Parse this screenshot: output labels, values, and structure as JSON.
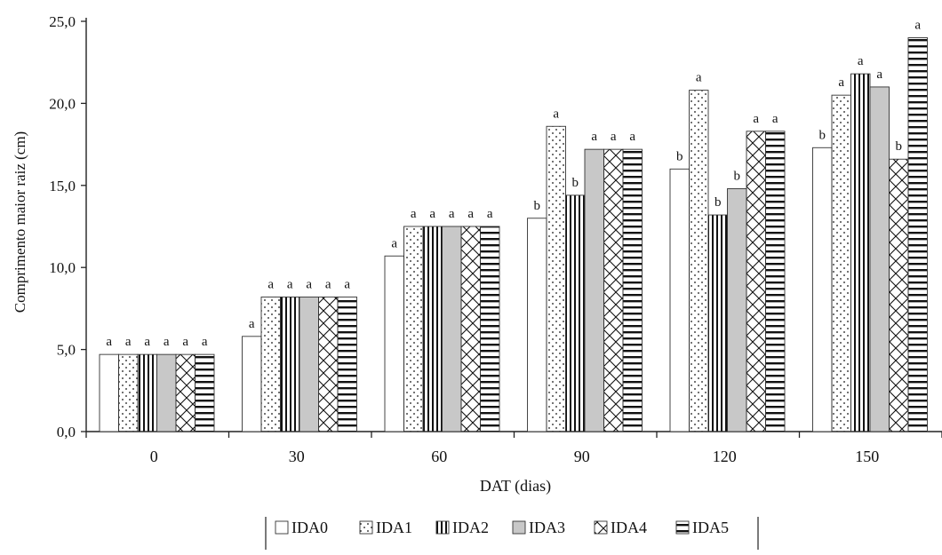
{
  "chart_data": {
    "type": "bar",
    "title": "",
    "xlabel": "DAT (dias)",
    "ylabel": "Comprimento maior raiz (cm)",
    "ylim": [
      0,
      25
    ],
    "yticks": [
      "0,0",
      "5,0",
      "10,0",
      "15,0",
      "20,0",
      "25,0"
    ],
    "categories": [
      "0",
      "30",
      "60",
      "90",
      "120",
      "150"
    ],
    "grid": false,
    "legend_position": "bottom",
    "series": [
      {
        "name": "IDA0",
        "pattern": "empty",
        "values": [
          4.7,
          5.8,
          10.7,
          13.0,
          16.0,
          17.3
        ],
        "letters": [
          "a",
          "a",
          "a",
          "b",
          "b",
          "b"
        ]
      },
      {
        "name": "IDA1",
        "pattern": "dots",
        "values": [
          4.7,
          8.2,
          12.5,
          18.6,
          20.8,
          20.5
        ],
        "letters": [
          "a",
          "a",
          "a",
          "a",
          "a",
          "a"
        ]
      },
      {
        "name": "IDA2",
        "pattern": "vlines",
        "values": [
          4.7,
          8.2,
          12.5,
          14.4,
          13.2,
          21.8
        ],
        "letters": [
          "a",
          "a",
          "a",
          "b",
          "b",
          "a"
        ]
      },
      {
        "name": "IDA3",
        "pattern": "solid-gray",
        "values": [
          4.7,
          8.2,
          12.5,
          17.2,
          14.8,
          21.0
        ],
        "letters": [
          "a",
          "a",
          "a",
          "a",
          "b",
          "a"
        ]
      },
      {
        "name": "IDA4",
        "pattern": "crosshatch",
        "values": [
          4.7,
          8.2,
          12.5,
          17.2,
          18.3,
          16.6
        ],
        "letters": [
          "a",
          "a",
          "a",
          "a",
          "a",
          "b"
        ]
      },
      {
        "name": "IDA5",
        "pattern": "hlines",
        "values": [
          4.7,
          8.2,
          12.5,
          17.2,
          18.3,
          24.0
        ],
        "letters": [
          "a",
          "a",
          "a",
          "a",
          "a",
          "a"
        ]
      }
    ],
    "colors": {
      "axis": "#222222",
      "bar_stroke": "#333333",
      "gray_fill": "#c8c8c8",
      "pattern_ink": "#111111"
    }
  }
}
